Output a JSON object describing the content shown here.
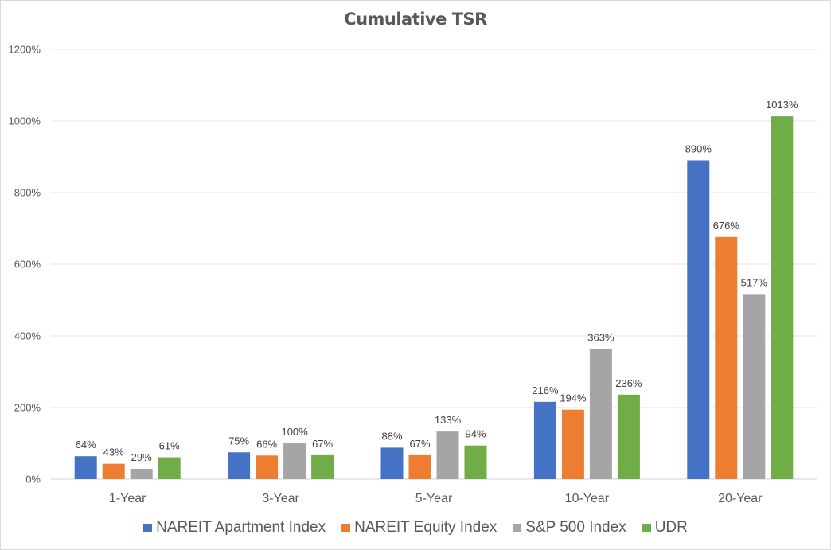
{
  "chart_data": {
    "type": "bar",
    "title": "Cumulative TSR",
    "categories": [
      "1-Year",
      "3-Year",
      "5-Year",
      "10-Year",
      "20-Year"
    ],
    "series": [
      {
        "name": "NAREIT Apartment Index",
        "color": "#4472C4",
        "values": [
          64,
          75,
          88,
          216,
          890
        ]
      },
      {
        "name": "NAREIT Equity Index",
        "color": "#ED7D31",
        "values": [
          43,
          66,
          67,
          194,
          676
        ]
      },
      {
        "name": "S&P 500 Index",
        "color": "#A5A5A5",
        "values": [
          29,
          100,
          133,
          363,
          517
        ]
      },
      {
        "name": "UDR",
        "color": "#70AD47",
        "values": [
          61,
          67,
          94,
          236,
          1013
        ]
      }
    ],
    "ylim": [
      0,
      1200
    ],
    "yticks": [
      0,
      200,
      400,
      600,
      800,
      1000,
      1200
    ],
    "value_suffix": "%",
    "xlabel": "",
    "ylabel": "",
    "grid": true,
    "legend_position": "bottom"
  }
}
